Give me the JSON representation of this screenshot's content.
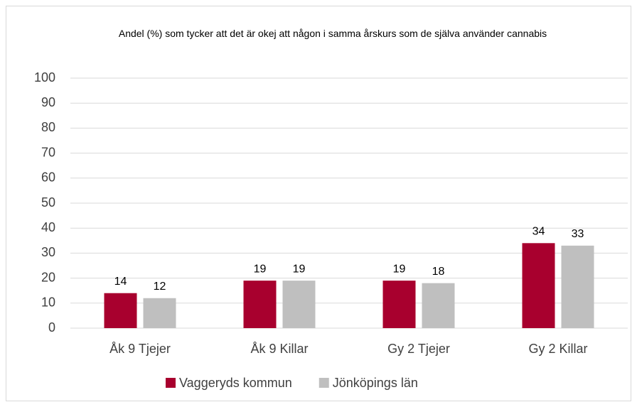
{
  "chart_data": {
    "type": "bar",
    "title": "Andel (%) som tycker att det är okej att någon i samma årskurs som de själva använder cannabis",
    "categories": [
      "Åk 9 Tjejer",
      "Åk 9 Killar",
      "Gy 2 Tjejer",
      "Gy 2 Killar"
    ],
    "series": [
      {
        "name": "Vaggeryds kommun",
        "color": "#a8002e",
        "values": [
          14,
          19,
          19,
          34
        ]
      },
      {
        "name": "Jönköpings län",
        "color": "#bfbfbf",
        "values": [
          12,
          19,
          18,
          33
        ]
      }
    ],
    "ylim": [
      0,
      100
    ],
    "yticks": [
      0,
      10,
      20,
      30,
      40,
      50,
      60,
      70,
      80,
      90,
      100
    ],
    "grid": true,
    "legend": "bottom"
  }
}
